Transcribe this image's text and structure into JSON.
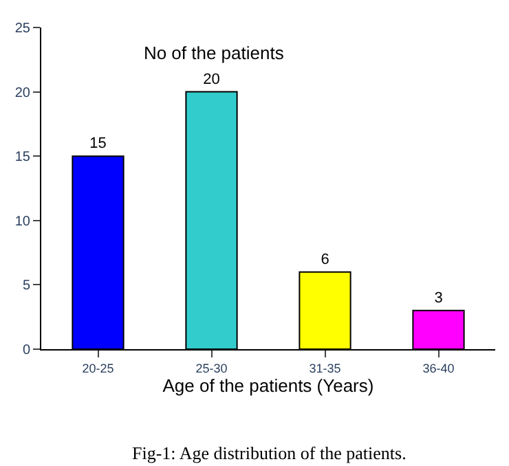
{
  "chart_data": {
    "type": "bar",
    "title": "No of the patients",
    "xlabel": "Age of the patients (Years)",
    "categories": [
      "20-25",
      "25-30",
      "31-35",
      "36-40"
    ],
    "values": [
      15,
      20,
      6,
      3
    ],
    "colors": [
      "#0000ff",
      "#33cccc",
      "#ffff00",
      "#ff00ff"
    ],
    "ylim": [
      0,
      25
    ],
    "yticks": [
      0,
      5,
      10,
      15,
      20,
      25
    ],
    "data_labels": true,
    "annotations": [
      "Fig-1: Age distribution of the patients."
    ]
  }
}
